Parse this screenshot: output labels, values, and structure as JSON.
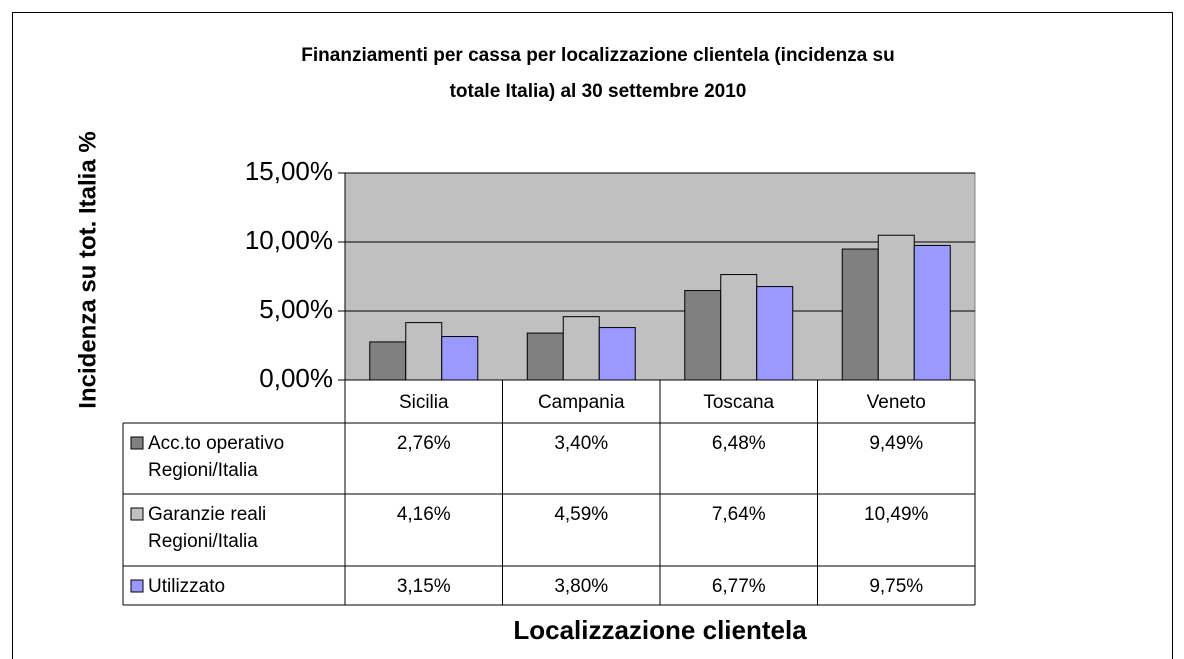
{
  "chart_data": {
    "type": "bar",
    "title": "Finanziamenti per cassa per localizzazione clientela (incidenza su totale Italia) al 30 settembre 2010",
    "x_label": "Localizzazione clientela",
    "y_label": "Incidenza su tot. Italia %",
    "categories": [
      "Sicilia",
      "Campania",
      "Toscana",
      "Veneto"
    ],
    "series": [
      {
        "name": "Acc.to operativo Regioni/Italia",
        "color": "#808080",
        "values": [
          2.76,
          3.4,
          6.48,
          9.49
        ],
        "value_labels": [
          "2,76%",
          "3,40%",
          "6,48%",
          "9,49%"
        ]
      },
      {
        "name": "Garanzie reali Regioni/Italia",
        "color": "#c0c0c0",
        "values": [
          4.16,
          4.59,
          7.64,
          10.49
        ],
        "value_labels": [
          "4,16%",
          "4,59%",
          "7,64%",
          "10,49%"
        ]
      },
      {
        "name": "Utilizzato",
        "color": "#9999ff",
        "values": [
          3.15,
          3.8,
          6.77,
          9.75
        ],
        "value_labels": [
          "3,15%",
          "3,80%",
          "6,77%",
          "9,75%"
        ]
      }
    ],
    "ylim": [
      0,
      15
    ],
    "yticks": [
      {
        "value": 0,
        "label": "0,00%"
      },
      {
        "value": 5,
        "label": "5,00%"
      },
      {
        "value": 10,
        "label": "10,00%"
      },
      {
        "value": 15,
        "label": "15,00%"
      }
    ],
    "grid": true,
    "plot_background": "#c0c0c0"
  }
}
